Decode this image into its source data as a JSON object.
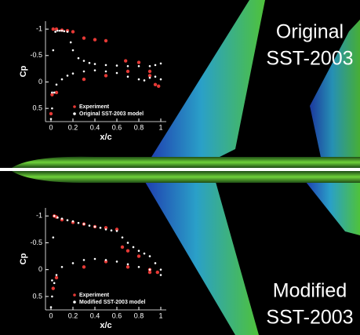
{
  "chart_data": [
    {
      "type": "scatter",
      "annotations": [
        "Original",
        "SST-2003"
      ],
      "xlabel": "x/c",
      "ylabel": "Cp",
      "xlim": [
        -0.05,
        1.05
      ],
      "xticks": [
        0,
        0.2,
        0.4,
        0.6,
        0.8,
        1
      ],
      "ylim": [
        0.75,
        -1.15
      ],
      "yticks": [
        -1,
        -0.5,
        0,
        0.5
      ],
      "legend": "lower center",
      "series": [
        {
          "name": "Experiment",
          "color": "#e53935",
          "x": [
            0.02,
            0.05,
            0.1,
            0.15,
            0.2,
            0.3,
            0.4,
            0.5,
            0.68,
            0.8,
            0.9,
            0.95,
            0.98,
            0.0,
            0.01,
            0.05,
            0.3,
            0.5,
            0.7,
            0.9
          ],
          "values": [
            -1.0,
            -1.0,
            -0.98,
            -0.97,
            -0.95,
            -0.83,
            -0.8,
            -0.78,
            -0.4,
            -0.37,
            -0.12,
            0.05,
            0.08,
            0.6,
            0.24,
            0.2,
            -0.05,
            -0.12,
            -0.2,
            -0.2
          ]
        },
        {
          "name": "Original SST-2003 model",
          "color": "#ffffff",
          "x": [
            0,
            0.01,
            0.02,
            0.04,
            0.06,
            0.08,
            0.1,
            0.12,
            0.15,
            0.18,
            0.2,
            0.25,
            0.3,
            0.35,
            0.4,
            0.5,
            0.6,
            0.7,
            0.8,
            0.9,
            0.95,
            1.0,
            0.01,
            0.03,
            0.05,
            0.1,
            0.15,
            0.2,
            0.3,
            0.4,
            0.5,
            0.6,
            0.7,
            0.8,
            0.85,
            0.9,
            0.95,
            1.0
          ],
          "values": [
            0.7,
            0.2,
            -0.6,
            -0.95,
            -0.97,
            -0.97,
            -0.97,
            -0.96,
            -0.95,
            -0.75,
            -0.6,
            -0.45,
            -0.4,
            -0.36,
            -0.34,
            -0.32,
            -0.31,
            -0.3,
            -0.3,
            -0.3,
            -0.32,
            -0.35,
            0.5,
            0.2,
            0.05,
            -0.05,
            -0.12,
            -0.16,
            -0.2,
            -0.22,
            -0.2,
            -0.17,
            -0.1,
            -0.05,
            -0.03,
            -0.08,
            -0.1,
            -0.05
          ]
        }
      ]
    },
    {
      "type": "scatter",
      "annotations": [
        "Modified",
        "SST-2003"
      ],
      "xlabel": "x/c",
      "ylabel": "Cp",
      "xlim": [
        -0.05,
        1.05
      ],
      "xticks": [
        0,
        0.2,
        0.4,
        0.6,
        0.8,
        1
      ],
      "ylim": [
        0.75,
        -1.15
      ],
      "yticks": [
        -1,
        -0.5,
        0,
        0.5
      ],
      "legend": "lower center",
      "series": [
        {
          "name": "Experiment",
          "color": "#e53935",
          "x": [
            0.03,
            0.05,
            0.1,
            0.2,
            0.3,
            0.4,
            0.5,
            0.6,
            0.65,
            0.7,
            0.8,
            0.9,
            0.97,
            0.02,
            0.05,
            0.3,
            0.5,
            0.7,
            0.9
          ],
          "values": [
            -1.0,
            -0.98,
            -0.93,
            -0.88,
            -0.85,
            -0.8,
            -0.78,
            -0.75,
            -0.42,
            -0.35,
            -0.25,
            0.0,
            0.05,
            0.35,
            0.15,
            -0.05,
            -0.15,
            -0.05,
            0.05
          ]
        },
        {
          "name": "Modified SST-2003 model",
          "color": "#ffffff",
          "x": [
            0,
            0.01,
            0.02,
            0.03,
            0.06,
            0.1,
            0.15,
            0.2,
            0.25,
            0.3,
            0.35,
            0.4,
            0.45,
            0.5,
            0.55,
            0.6,
            0.65,
            0.7,
            0.75,
            0.8,
            0.85,
            0.9,
            0.95,
            1.0,
            0.01,
            0.03,
            0.05,
            0.1,
            0.2,
            0.3,
            0.4,
            0.5,
            0.6,
            0.7,
            0.8,
            0.9,
            1.0
          ],
          "values": [
            0.7,
            0.2,
            -0.6,
            -1.0,
            -0.97,
            -0.95,
            -0.92,
            -0.9,
            -0.87,
            -0.85,
            -0.82,
            -0.8,
            -0.78,
            -0.75,
            -0.73,
            -0.72,
            -0.6,
            -0.5,
            -0.42,
            -0.35,
            -0.3,
            -0.25,
            -0.12,
            0.0,
            0.5,
            0.25,
            0.1,
            -0.05,
            -0.12,
            -0.18,
            -0.2,
            -0.18,
            -0.15,
            -0.1,
            -0.05,
            0.0,
            0.1
          ]
        }
      ]
    }
  ]
}
